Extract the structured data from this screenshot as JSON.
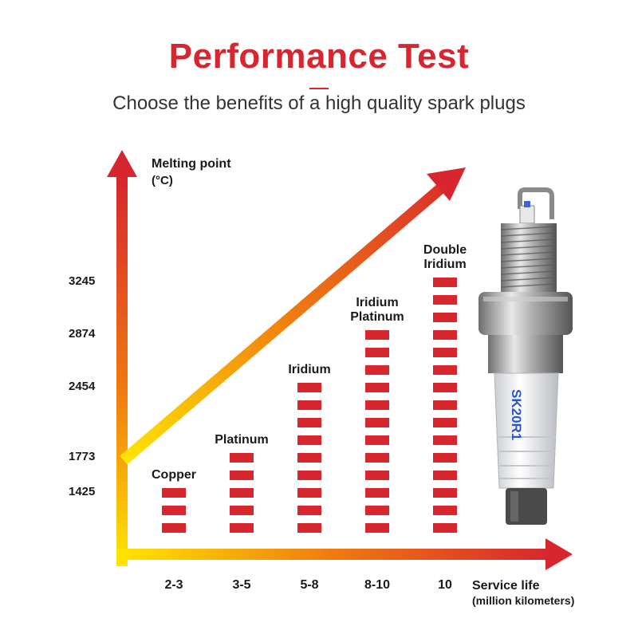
{
  "header": {
    "title": "Performance Test",
    "subtitle": "Choose the benefits of a high quality spark plugs"
  },
  "chart_data": {
    "type": "bar",
    "categories": [
      "Copper",
      "Platinum",
      "Iridium",
      "Iridium Platinum",
      "Double Iridium"
    ],
    "x_ticks": [
      "2-3",
      "3-5",
      "5-8",
      "8-10",
      "10"
    ],
    "values": [
      1425,
      1773,
      2454,
      2874,
      3245
    ],
    "y_ticks": [
      "1425",
      "1773",
      "2454",
      "2874",
      "3245"
    ],
    "ylabel": "Melting point",
    "yunit": "(°C)",
    "xlabel": "Service life",
    "xunit": "(million kilometers)",
    "bar_color": "#d7262e",
    "axis_gradient": [
      "#ffe600",
      "#d7262e"
    ]
  },
  "product": {
    "marking": "SK20R1",
    "icon": "spark-plug-icon"
  }
}
